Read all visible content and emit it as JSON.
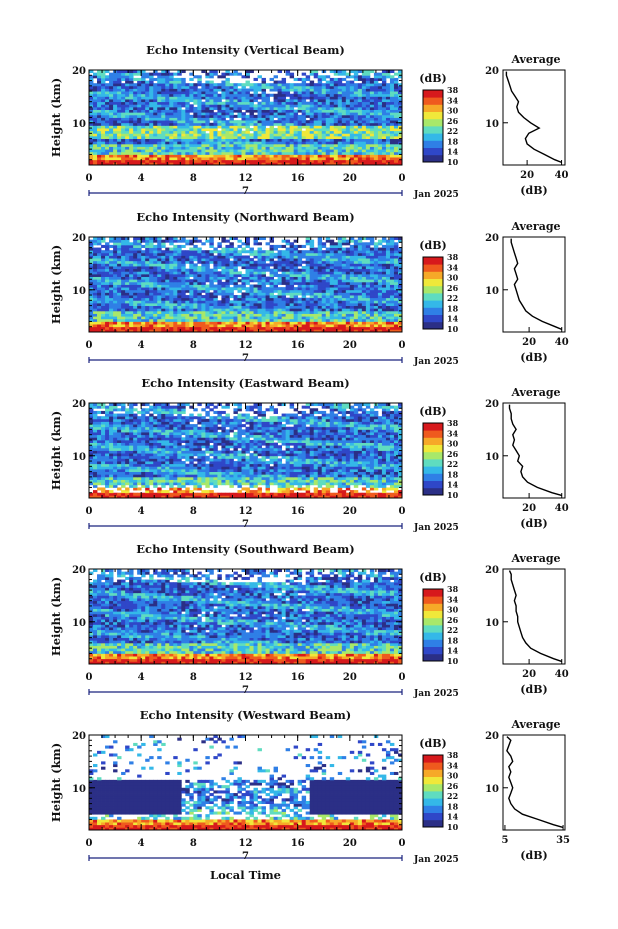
{
  "figure": {
    "bottom_xlabel": "Local Time"
  },
  "colorbar": {
    "unit": "(dB)",
    "ticks": [
      "10",
      "14",
      "18",
      "22",
      "26",
      "30",
      "34",
      "38"
    ],
    "colors": [
      "#2b2f86",
      "#2f47c8",
      "#2f7fe6",
      "#34b8e8",
      "#5fdcc0",
      "#a8e86a",
      "#f0e83a",
      "#f6a928",
      "#ef5a1e",
      "#d7191c"
    ]
  },
  "chart_data": [
    {
      "type": "heatmap",
      "title": "Echo Intensity (Vertical Beam)",
      "ylabel": "Height (km)",
      "yticks": [
        "10",
        "20"
      ],
      "ylim": [
        2,
        20
      ],
      "xticks": [
        "0",
        "4",
        "8",
        "12",
        "16",
        "20",
        "0"
      ],
      "xlim": [
        0,
        24
      ],
      "date_marker": "7",
      "date_label": "Jan 2025",
      "z_label": "(dB)",
      "zlim": [
        10,
        38
      ],
      "profile": {
        "title": "Average",
        "xlabel": "(dB)",
        "xticks": [
          "20",
          "40"
        ],
        "xlim": [
          6,
          42
        ],
        "height": [
          2.5,
          3,
          4,
          5,
          6,
          7,
          8,
          9,
          10,
          11,
          12,
          13,
          14,
          15,
          16,
          17,
          18,
          19,
          19.7
        ],
        "value": [
          40,
          36,
          30,
          24,
          20,
          19,
          21,
          27,
          22,
          18,
          15,
          14,
          15,
          13,
          11,
          10,
          9,
          8,
          8
        ]
      }
    },
    {
      "type": "heatmap",
      "title": "Echo Intensity (Northward Beam)",
      "ylabel": "Height (km)",
      "yticks": [
        "10",
        "20"
      ],
      "ylim": [
        2,
        20
      ],
      "xticks": [
        "0",
        "4",
        "8",
        "12",
        "16",
        "20",
        "0"
      ],
      "xlim": [
        0,
        24
      ],
      "date_marker": "7",
      "date_label": "Jan 2025",
      "z_label": "(dB)",
      "zlim": [
        10,
        38
      ],
      "profile": {
        "title": "Average",
        "xlabel": "(dB)",
        "xticks": [
          "20",
          "40"
        ],
        "xlim": [
          4,
          42
        ],
        "height": [
          2.5,
          3,
          4,
          5,
          6,
          7,
          8,
          9,
          10,
          11,
          12,
          13,
          14,
          15,
          16,
          17,
          18,
          19,
          19.7
        ],
        "value": [
          40,
          36,
          28,
          22,
          18,
          16,
          14,
          13,
          12,
          11,
          13,
          12,
          11,
          13,
          12,
          11,
          10,
          9,
          9
        ]
      }
    },
    {
      "type": "heatmap",
      "title": "Echo Intensity (Eastward Beam)",
      "ylabel": "Height (km)",
      "yticks": [
        "10",
        "20"
      ],
      "ylim": [
        2,
        20
      ],
      "xticks": [
        "0",
        "4",
        "8",
        "12",
        "16",
        "20",
        "0"
      ],
      "xlim": [
        0,
        24
      ],
      "date_marker": "7",
      "date_label": "Jan 2025",
      "z_label": "(dB)",
      "zlim": [
        10,
        38
      ],
      "profile": {
        "title": "Average",
        "xlabel": "(dB)",
        "xticks": [
          "20",
          "40"
        ],
        "xlim": [
          4,
          42
        ],
        "height": [
          2.5,
          3,
          4,
          5,
          6,
          7,
          8,
          9,
          10,
          11,
          12,
          13,
          14,
          15,
          16,
          17,
          18,
          19,
          19.7
        ],
        "value": [
          40,
          34,
          25,
          19,
          16,
          15,
          16,
          13,
          14,
          12,
          10,
          11,
          10,
          12,
          10,
          9,
          9,
          8,
          8
        ]
      }
    },
    {
      "type": "heatmap",
      "title": "Echo Intensity (Southward Beam)",
      "ylabel": "Height (km)",
      "yticks": [
        "10",
        "20"
      ],
      "ylim": [
        2,
        20
      ],
      "xticks": [
        "0",
        "4",
        "8",
        "12",
        "16",
        "20",
        "0"
      ],
      "xlim": [
        0,
        24
      ],
      "date_marker": "7",
      "date_label": "Jan 2025",
      "z_label": "(dB)",
      "zlim": [
        10,
        38
      ],
      "profile": {
        "title": "Average",
        "xlabel": "(dB)",
        "xticks": [
          "20",
          "40"
        ],
        "xlim": [
          4,
          42
        ],
        "height": [
          2.5,
          3,
          4,
          5,
          6,
          7,
          8,
          9,
          10,
          11,
          12,
          13,
          14,
          15,
          16,
          17,
          18,
          19,
          19.7
        ],
        "value": [
          40,
          35,
          27,
          21,
          18,
          16,
          15,
          14,
          13,
          13,
          12,
          12,
          11,
          12,
          11,
          10,
          9,
          9,
          8
        ]
      }
    },
    {
      "type": "heatmap",
      "title": "Echo Intensity (Westward Beam)",
      "ylabel": "Height (km)",
      "yticks": [
        "10",
        "20"
      ],
      "ylim": [
        2,
        20
      ],
      "xticks": [
        "0",
        "4",
        "8",
        "12",
        "16",
        "20",
        "0"
      ],
      "xlim": [
        0,
        24
      ],
      "date_marker": "7",
      "date_label": "Jan 2025",
      "z_label": "(dB)",
      "zlim": [
        10,
        38
      ],
      "profile": {
        "title": "Average",
        "xlabel": "(dB)",
        "xticks": [
          "5",
          "35"
        ],
        "xlim": [
          4,
          36
        ],
        "height": [
          2.5,
          3,
          4,
          5,
          6,
          7,
          8,
          9,
          10,
          11,
          12,
          13,
          14,
          15,
          16,
          17,
          18,
          19,
          19.7
        ],
        "value": [
          35,
          30,
          22,
          14,
          10,
          8,
          7,
          8,
          9,
          8,
          7,
          8,
          7,
          9,
          8,
          6,
          7,
          8,
          6
        ]
      }
    }
  ]
}
